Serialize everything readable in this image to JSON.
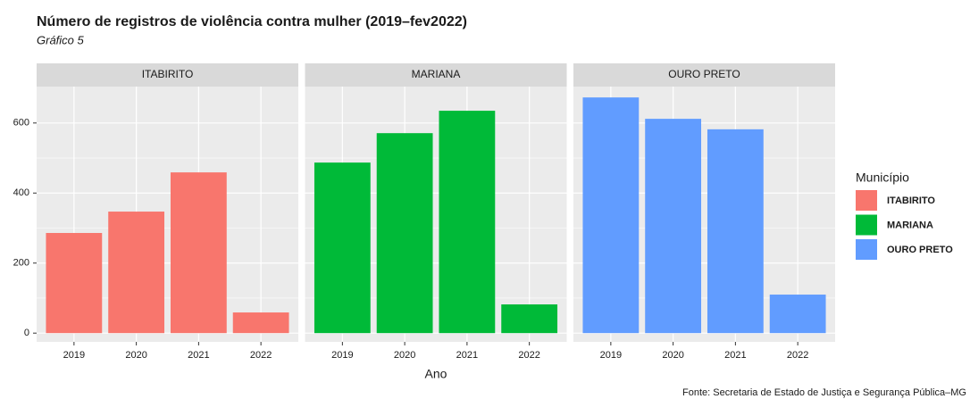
{
  "chart_data": {
    "type": "bar",
    "title": "Número de registros de violência contra mulher (2019–fev2022)",
    "subtitle": "Gráfico 5",
    "x_label": "Ano",
    "caption": "Fonte: Secretaria de Estado de Justiça e Segurança Pública–MG",
    "legend_title": "Município",
    "categories": [
      "2019",
      "2020",
      "2021",
      "2022"
    ],
    "series": [
      {
        "name": "ITABIRITO",
        "color": "#f8766d",
        "values": [
          286,
          347,
          459,
          59
        ]
      },
      {
        "name": "MARIANA",
        "color": "#00ba38",
        "values": [
          487,
          571,
          635,
          82
        ]
      },
      {
        "name": "OURO PRETO",
        "color": "#619cff",
        "values": [
          673,
          612,
          582,
          110
        ]
      }
    ],
    "ylim": [
      -25,
      704
    ],
    "yticks": [
      0,
      200,
      400,
      600
    ],
    "y_minor_ticks": [
      100,
      300,
      500
    ],
    "grid": true
  }
}
